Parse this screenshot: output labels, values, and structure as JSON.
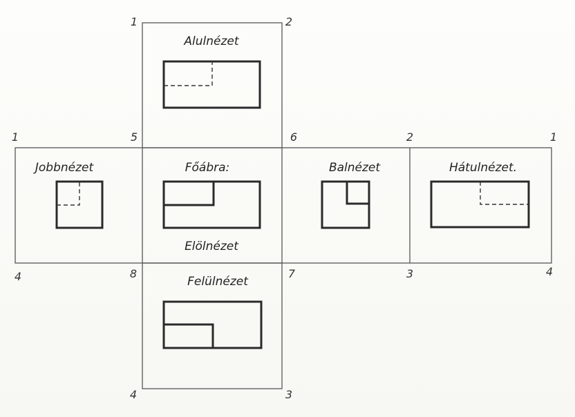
{
  "views": {
    "bottom": "Alulnézet",
    "right": "Jobbnézet",
    "main": "Főábra:",
    "left": "Balnézet",
    "back": "Hátulnézet.",
    "front": "Elölnézet",
    "top": "Felülnézet"
  },
  "corners": {
    "top_left_1": "1",
    "top_right_2": "2",
    "left_1": "1",
    "c5": "5",
    "c6": "6",
    "c2": "2",
    "right_1": "1",
    "left_4": "4",
    "c8": "8",
    "c7": "7",
    "c3": "3",
    "right_4": "4",
    "bottom_4": "4",
    "bottom_3": "3"
  }
}
